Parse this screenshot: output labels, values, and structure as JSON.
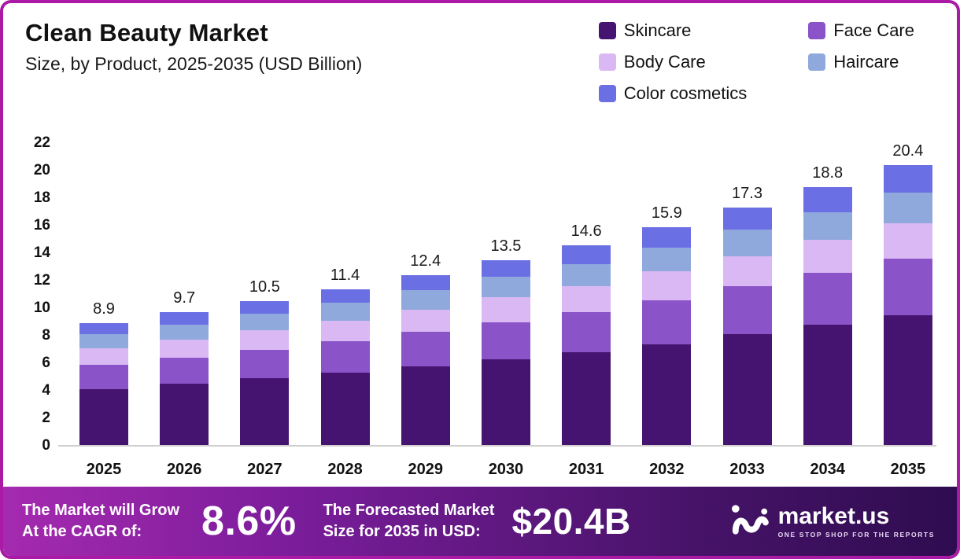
{
  "header": {
    "title": "Clean Beauty Market",
    "subtitle": "Size, by Product, 2025-2035 (USD Billion)"
  },
  "legend": [
    {
      "label": "Skincare",
      "color": "#451470"
    },
    {
      "label": "Face Care",
      "color": "#8a53c7"
    },
    {
      "label": "Body Care",
      "color": "#d9b8f3"
    },
    {
      "label": "Haircare",
      "color": "#8fa9dc"
    },
    {
      "label": "Color cosmetics",
      "color": "#6b6fe4"
    }
  ],
  "chart_data": {
    "type": "bar",
    "stacked": true,
    "title": "Clean Beauty Market Size, by Product, 2025-2035 (USD Billion)",
    "categories": [
      "2025",
      "2026",
      "2027",
      "2028",
      "2029",
      "2030",
      "2031",
      "2032",
      "2033",
      "2034",
      "2035"
    ],
    "totals": [
      8.9,
      9.7,
      10.5,
      11.4,
      12.4,
      13.5,
      14.6,
      15.9,
      17.3,
      18.8,
      20.4
    ],
    "series": [
      {
        "name": "Skincare",
        "color": "#451470",
        "values": [
          4.1,
          4.5,
          4.9,
          5.3,
          5.8,
          6.3,
          6.8,
          7.4,
          8.1,
          8.8,
          9.5
        ]
      },
      {
        "name": "Face Care",
        "color": "#8a53c7",
        "values": [
          1.8,
          1.9,
          2.1,
          2.3,
          2.5,
          2.7,
          2.9,
          3.2,
          3.5,
          3.8,
          4.1
        ]
      },
      {
        "name": "Body Care",
        "color": "#d9b8f3",
        "values": [
          1.2,
          1.3,
          1.4,
          1.5,
          1.6,
          1.8,
          1.9,
          2.1,
          2.2,
          2.4,
          2.6
        ]
      },
      {
        "name": "Haircare",
        "color": "#8fa9dc",
        "values": [
          1.0,
          1.1,
          1.2,
          1.3,
          1.4,
          1.5,
          1.6,
          1.7,
          1.9,
          2.0,
          2.2
        ]
      },
      {
        "name": "Color cosmetics",
        "color": "#6b6fe4",
        "values": [
          0.8,
          0.9,
          0.9,
          1.0,
          1.1,
          1.2,
          1.4,
          1.5,
          1.6,
          1.8,
          2.0
        ]
      }
    ],
    "y_ticks": [
      22,
      20,
      18,
      16,
      14,
      12,
      10,
      8,
      6,
      4,
      2,
      0
    ],
    "ylim": [
      0,
      22
    ],
    "xlabel": "",
    "ylabel": "",
    "grid": false,
    "legend_position": "top-right"
  },
  "banner": {
    "cagr_label_line1": "The Market will Grow",
    "cagr_label_line2": "At the CAGR of:",
    "cagr_value": "8.6%",
    "forecast_label_line1": "The Forecasted Market",
    "forecast_label_line2": "Size for 2035 in USD:",
    "forecast_value": "$20.4B",
    "brand": "market.us",
    "brand_tagline": "ONE STOP SHOP FOR THE REPORTS"
  },
  "colors": {
    "frame_border": "#ab1aa5",
    "banner_gradient_start": "#a52aaf",
    "banner_gradient_end": "#2f0c50",
    "baseline": "#cfcfcf"
  }
}
